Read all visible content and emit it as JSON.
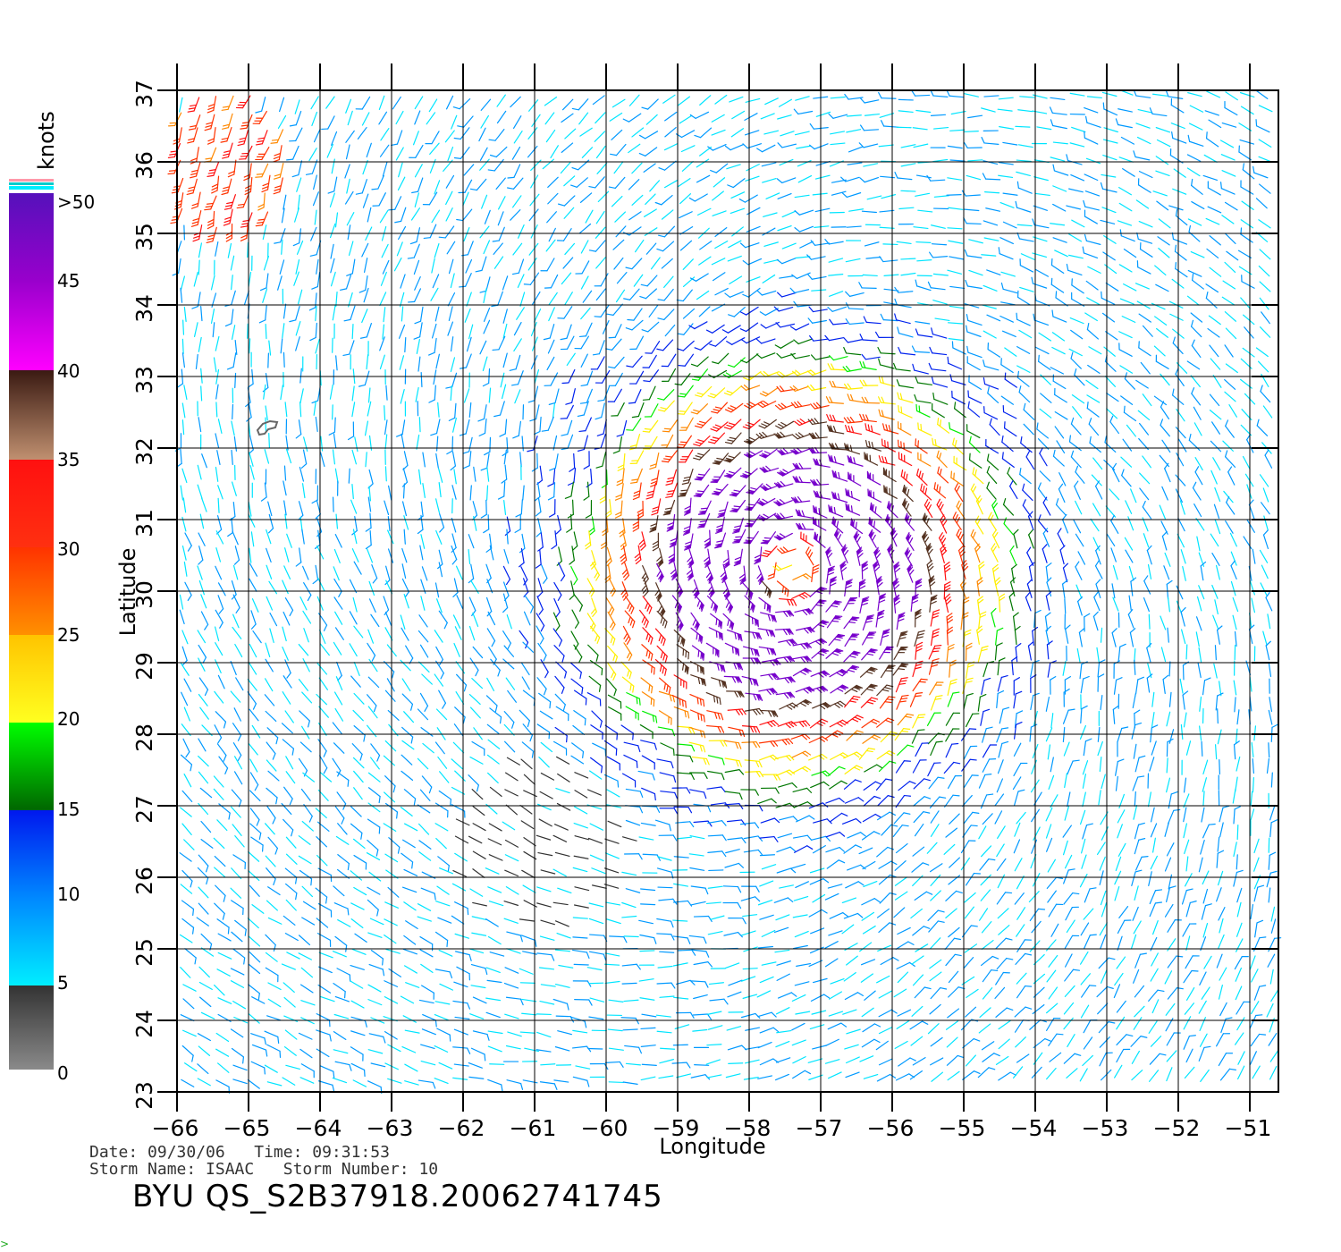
{
  "map": {
    "x_axis_label": "Longitude",
    "y_axis_label": "Latitude",
    "x_ticks": [
      "-66",
      "-65",
      "-64",
      "-63",
      "-62",
      "-61",
      "-60",
      "-59",
      "-58",
      "-57",
      "-56",
      "-55",
      "-54",
      "-53",
      "-52",
      "-51"
    ],
    "y_ticks": [
      "37",
      "36",
      "35",
      "34",
      "33",
      "32",
      "31",
      "30",
      "29",
      "28",
      "27",
      "26",
      "25",
      "24",
      "23"
    ],
    "lon_range": [
      -66,
      -50.6
    ],
    "lat_range": [
      23,
      37
    ],
    "grid": true,
    "storm_center": {
      "lon": -57.4,
      "lat": 30.3
    },
    "field": "wind vectors (QuikSCAT scatterometer), cyclonic circulation"
  },
  "legend": {
    "unit_label": "knots",
    "labels": [
      ">50",
      "45",
      "40",
      "35",
      "30",
      "25",
      "20",
      "15",
      "10",
      "5",
      "0"
    ],
    "colors": {
      "gray": "#888888",
      "dark_gray": "#333333",
      "cyan": "#00e5ff",
      "light_blue": "#0099ff",
      "blue": "#0022ee",
      "dark_green": "#007700",
      "green": "#00ee00",
      "yellow": "#ffee00",
      "orange": "#ff8800",
      "red_orange": "#ff3300",
      "red": "#ff1010",
      "brown": "#553322",
      "magenta": "#ff00ff",
      "purple": "#7700cc",
      "violet": "#5511bb"
    }
  },
  "caption": {
    "date_line": "Date: 09/30/06   Time: 09:31:53",
    "storm_line": "Storm Name: ISAAC   Storm Number: 10",
    "product_id": "BYU QS_S2B37918.20062741745"
  }
}
